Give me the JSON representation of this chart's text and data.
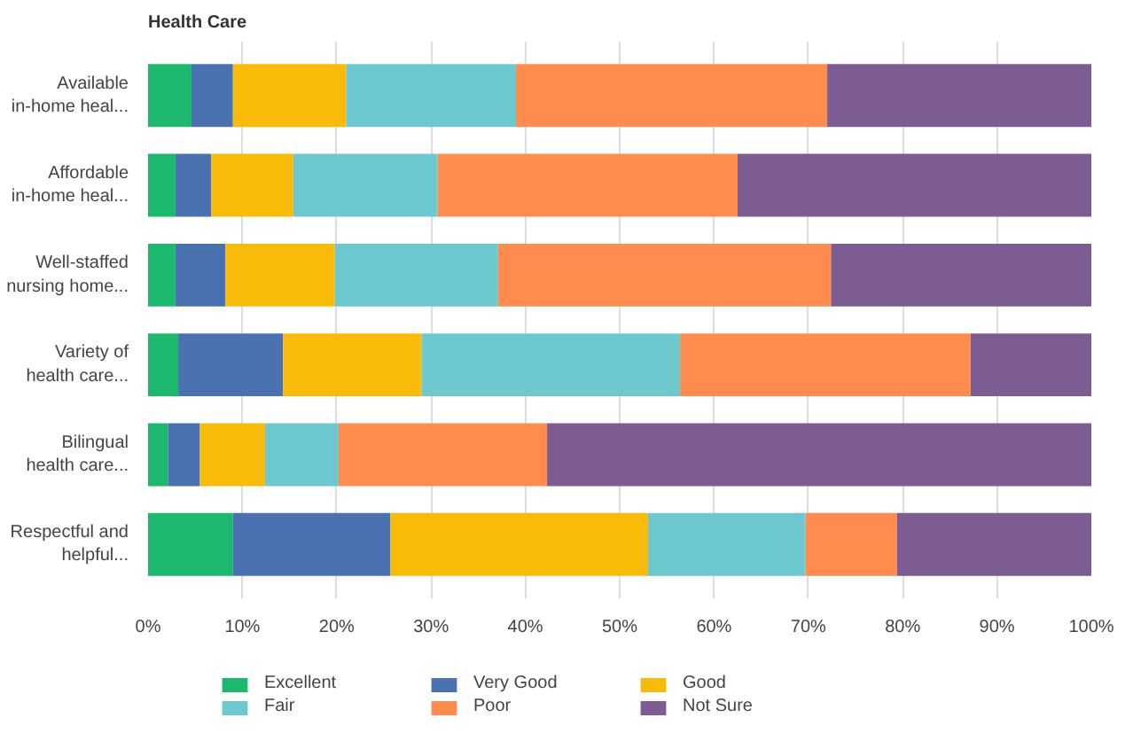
{
  "chart_data": {
    "type": "bar",
    "orientation": "horizontal",
    "stacked": true,
    "title": "Health Care",
    "categories": [
      "Available\nin-home heal...",
      "Affordable\nin-home heal...",
      "Well-staffed\nnursing home...",
      "Variety of\nhealth care...",
      "Bilingual\nhealth care...",
      "Respectful and\nhelpful..."
    ],
    "series": [
      {
        "name": "Excellent",
        "color": "#1bb86e",
        "values": [
          4.6,
          2.9,
          2.9,
          3.2,
          2.1,
          9.0
        ]
      },
      {
        "name": "Very Good",
        "color": "#4a72b0",
        "values": [
          4.4,
          3.8,
          5.3,
          11.1,
          3.4,
          16.7
        ]
      },
      {
        "name": "Good",
        "color": "#f8bb0a",
        "values": [
          12,
          8.7,
          11.6,
          14.7,
          6.9,
          27.3
        ]
      },
      {
        "name": "Fair",
        "color": "#6ec8cf",
        "values": [
          18,
          15.3,
          17.3,
          27.4,
          7.8,
          16.7
        ]
      },
      {
        "name": "Poor",
        "color": "#ff8c4f",
        "values": [
          33,
          31.8,
          35.3,
          30.8,
          22.1,
          9.7
        ]
      },
      {
        "name": "Not Sure",
        "color": "#7c5c92",
        "values": [
          28,
          37.5,
          27.6,
          12.8,
          57.7,
          20.6
        ]
      }
    ],
    "xlim": [
      0,
      100
    ],
    "xticks": [
      {
        "value": 0,
        "label": "0%"
      },
      {
        "value": 10,
        "label": "10%"
      },
      {
        "value": 20,
        "label": "20%"
      },
      {
        "value": 30,
        "label": "30%"
      },
      {
        "value": 40,
        "label": "40%"
      },
      {
        "value": 50,
        "label": "50%"
      },
      {
        "value": 60,
        "label": "60%"
      },
      {
        "value": 70,
        "label": "70%"
      },
      {
        "value": 80,
        "label": "80%"
      },
      {
        "value": 90,
        "label": "90%"
      },
      {
        "value": 100,
        "label": "100%"
      }
    ],
    "grid": "x",
    "legend": "bottom"
  }
}
